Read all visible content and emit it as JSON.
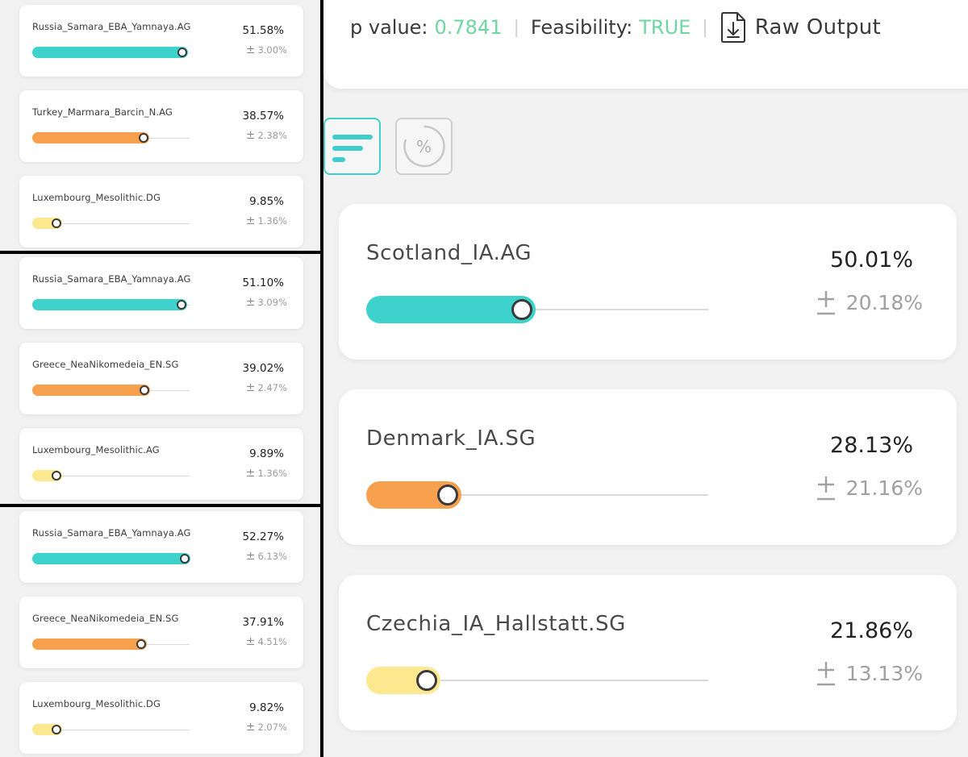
{
  "colors": {
    "teal": "#3dd3cc",
    "orange": "#f7a04e",
    "yellow": "#fce88e",
    "green_value": "#6fd6a3"
  },
  "left_panels": [
    {
      "rows": [
        {
          "name": "Russia_Samara_EBA_Yamnaya.AG",
          "percent": "51.58%",
          "error": "3.00%",
          "value": 51.58,
          "color": "teal"
        },
        {
          "name": "Turkey_Marmara_Barcin_N.AG",
          "percent": "38.57%",
          "error": "2.38%",
          "value": 38.57,
          "color": "orange"
        },
        {
          "name": "Luxembourg_Mesolithic.DG",
          "percent": "9.85%",
          "error": "1.36%",
          "value": 9.85,
          "color": "yellow"
        }
      ]
    },
    {
      "rows": [
        {
          "name": "Russia_Samara_EBA_Yamnaya.AG",
          "percent": "51.10%",
          "error": "3.09%",
          "value": 51.1,
          "color": "teal"
        },
        {
          "name": "Greece_NeaNikomedeia_EN.SG",
          "percent": "39.02%",
          "error": "2.47%",
          "value": 39.02,
          "color": "orange"
        },
        {
          "name": "Luxembourg_Mesolithic.AG",
          "percent": "9.89%",
          "error": "1.36%",
          "value": 9.89,
          "color": "yellow"
        }
      ]
    },
    {
      "rows": [
        {
          "name": "Russia_Samara_EBA_Yamnaya.AG",
          "percent": "52.27%",
          "error": "6.13%",
          "value": 52.27,
          "color": "teal"
        },
        {
          "name": "Greece_NeaNikomedeia_EN.SG",
          "percent": "37.91%",
          "error": "4.51%",
          "value": 37.91,
          "color": "orange"
        },
        {
          "name": "Luxembourg_Mesolithic.DG",
          "percent": "9.82%",
          "error": "2.07%",
          "value": 9.82,
          "color": "yellow"
        }
      ]
    }
  ],
  "header": {
    "p_value_label": "p value:",
    "p_value": "0.7841",
    "separator": "|",
    "feasibility_label": "Feasibility:",
    "feasibility": "TRUE",
    "raw_output_label": "Raw Output"
  },
  "view_modes": {
    "percent_symbol": "%"
  },
  "results": [
    {
      "name": "Scotland_IA.AG",
      "percent": "50.01%",
      "error": "20.18%",
      "value": 50.01,
      "color": "teal"
    },
    {
      "name": "Denmark_IA.SG",
      "percent": "28.13%",
      "error": "21.16%",
      "value": 28.13,
      "color": "orange"
    },
    {
      "name": "Czechia_IA_Hallstatt.SG",
      "percent": "21.86%",
      "error": "13.13%",
      "value": 21.86,
      "color": "yellow"
    }
  ]
}
